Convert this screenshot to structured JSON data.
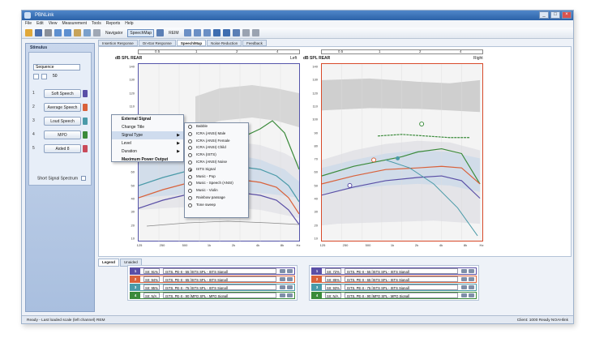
{
  "window": {
    "title": "PBNLink",
    "buttons": [
      "_",
      "□",
      "×"
    ]
  },
  "menu": [
    "File",
    "Edit",
    "View",
    "Measurement",
    "Tools",
    "Reports",
    "Help"
  ],
  "toolbar": {
    "navigator_label": "Navigator",
    "speechmap_label": "SpeechMap",
    "reim_label": "REIM"
  },
  "tabs": [
    "Insertion Response",
    "On-Ear Response",
    "Speech/Map",
    "Noise Reduction",
    "Feedback"
  ],
  "sidebar": {
    "title": "Stimulus",
    "stimulus_value": "Sequence",
    "channel_value": "50",
    "signals": [
      {
        "num": "1",
        "label": "Soft Speech",
        "color": "#5a4fa6"
      },
      {
        "num": "2",
        "label": "Average Speech",
        "color": "#d9613a"
      },
      {
        "num": "3",
        "label": "Loud Speech",
        "color": "#4a9aa8"
      },
      {
        "num": "4",
        "label": "MPO",
        "color": "#3a8a3a"
      },
      {
        "num": "5",
        "label": "Aided 8",
        "color": "#c94a5a"
      }
    ],
    "short_signal_label": "Short Signal Spectrum"
  },
  "context_menu": {
    "items": [
      {
        "label": "External Signal",
        "bold": true
      },
      {
        "label": "Change Title",
        "bold": false
      },
      {
        "label": "Signal Type",
        "bold": false,
        "submenu": true
      },
      {
        "label": "Level",
        "bold": false,
        "submenu": true
      },
      {
        "label": "Duration",
        "bold": false,
        "submenu": true
      },
      {
        "label": "Maximum Power Output",
        "bold": true
      }
    ],
    "submenu": [
      "Babble",
      "ICRA (ANSI) Male",
      "ICRA (ANSI) Female",
      "ICRA (ANSI) Child",
      "ICRA (ISTS)",
      "ICRA (ANSI) Noise",
      "ISTS Signal",
      "Music - Pop",
      "Music - Speech (ANSI)",
      "Music - Violin",
      "Rainbow passage",
      "Tone sweep"
    ]
  },
  "left_panel": {
    "title": "dB SPL REAR",
    "side": "Left",
    "freq_strip": [
      "0.5",
      "1",
      "2",
      "4"
    ],
    "y_ticks": [
      "140",
      "130",
      "120",
      "110",
      "100",
      "90",
      "80",
      "70",
      "60",
      "50",
      "40",
      "30",
      "20",
      "10"
    ],
    "x_ticks": [
      "125",
      "250",
      "500",
      "1k",
      "2k",
      "4k",
      "8k",
      "Hz"
    ]
  },
  "right_panel": {
    "title": "dB SPL REAR",
    "side": "Right",
    "freq_strip": [
      "0.5",
      "1",
      "2",
      "4"
    ],
    "y_ticks": [
      "140",
      "130",
      "120",
      "110",
      "100",
      "90",
      "80",
      "70",
      "60",
      "50",
      "40",
      "30",
      "20",
      "10"
    ],
    "x_ticks": [
      "125",
      "250",
      "500",
      "1k",
      "2k",
      "4k",
      "8k",
      "Hz"
    ]
  },
  "subtabs": [
    "Legend",
    "Unaided"
  ],
  "legend_left": [
    {
      "num": "1",
      "level": "SII: 91%",
      "desc": "ISTS, PE-II - 55 [ISTS SPL - ISTS Signal]",
      "color": "#5a4fa6"
    },
    {
      "num": "2",
      "level": "SII: 94%",
      "desc": "ISTS, PE-II - 65 [ISTS SPL - ISTS Signal]",
      "color": "#d9613a"
    },
    {
      "num": "3",
      "level": "SII: 95%",
      "desc": "ISTS, PE-II - 75 [ISTS SPL - ISTS Signal]",
      "color": "#4a9aa8"
    },
    {
      "num": "4",
      "level": "SII: N/A",
      "desc": "ISTS, PE-II - 90 [MPO SPL - MPO Signal]",
      "color": "#3a8a3a"
    }
  ],
  "legend_right": [
    {
      "num": "1",
      "level": "SII: 72%",
      "desc": "ISTS, PE-II - 55 [ISTS SPL - ISTS Signal]",
      "color": "#5a4fa6"
    },
    {
      "num": "2",
      "level": "SII: 85%",
      "desc": "ISTS, PE-II - 65 [ISTS SPL - ISTS Signal]",
      "color": "#d9613a"
    },
    {
      "num": "3",
      "level": "SII: 93%",
      "desc": "ISTS, PE-II - 75 [ISTS SPL - ISTS Signal]",
      "color": "#4a9aa8"
    },
    {
      "num": "4",
      "level": "SII: N/A",
      "desc": "ISTS, PE-II - 90 [MPO SPL - MPO Signal]",
      "color": "#3a8a3a"
    }
  ],
  "status": {
    "left": "Ready - Last loaded scale (left channel) REM",
    "right": "Client: 1000   Ready   NOAHlink"
  }
}
